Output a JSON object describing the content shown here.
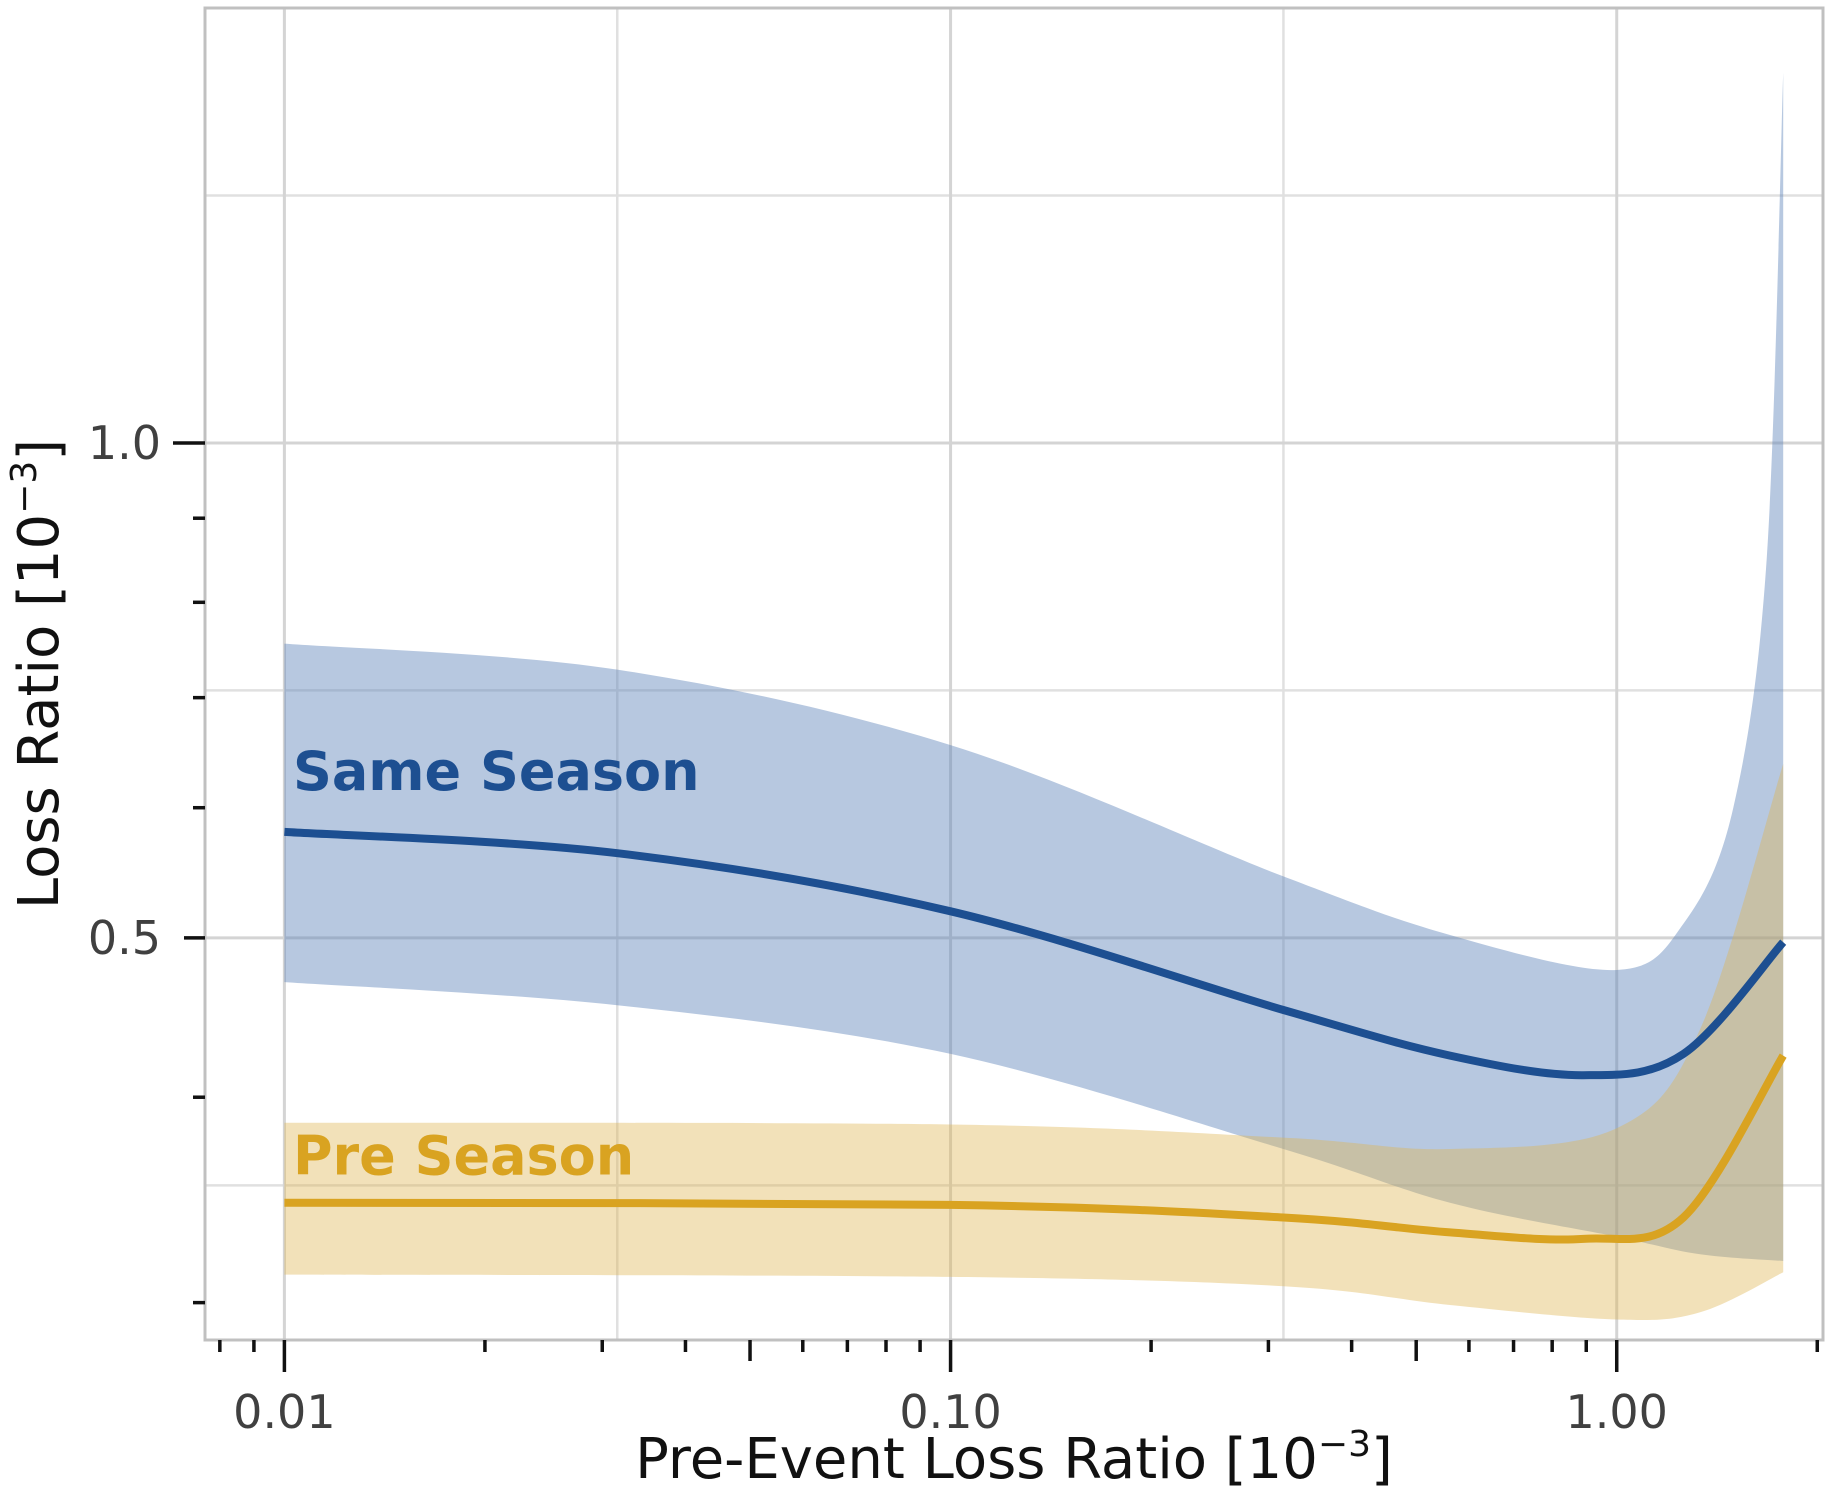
{
  "chart_data": {
    "type": "line",
    "title": "",
    "xlabel": {
      "pre": "Pre-Event Loss Ratio [10",
      "sup": "−3",
      "post": "]"
    },
    "ylabel": {
      "pre": "Loss Ratio [10",
      "sup": "−3",
      "post": "]"
    },
    "x_scale": "log10",
    "y_scale": "log10",
    "xlim": [
      0.0076,
      2.04
    ],
    "ylim": [
      0.2847,
      1.839
    ],
    "grid": true,
    "legend": "inline-labels",
    "x_major_gridlines": [
      0.01,
      0.1,
      1.0
    ],
    "x_minor_gridlines": [
      0.0316,
      0.316
    ],
    "y_major_gridlines": [
      0.5,
      1.0
    ],
    "y_minor_gridlines": [
      0.35355,
      0.70711,
      1.41421
    ],
    "x_ticks": [
      {
        "value": 0.01,
        "label": "0.01"
      },
      {
        "value": 0.1,
        "label": "0.10"
      },
      {
        "value": 1.0,
        "label": "1.00"
      }
    ],
    "y_ticks": [
      {
        "value": 0.5,
        "label": "0.5"
      },
      {
        "value": 1.0,
        "label": "1.0"
      }
    ],
    "log_tick_marks": {
      "sides": "bottom-left"
    },
    "series": [
      {
        "name": "Same Season",
        "line_color": "#1d4f91",
        "ribbon_color": "rgba(96,133,187,0.45)",
        "label": {
          "text": "Same Season",
          "x": 0.0103,
          "y": 0.615,
          "color": "#1d4f91"
        },
        "points": [
          [
            0.01,
            0.58
          ],
          [
            0.0316,
            0.563
          ],
          [
            0.1,
            0.519
          ],
          [
            0.316,
            0.452
          ],
          [
            0.562,
            0.424
          ],
          [
            0.891,
            0.4125
          ],
          [
            1.259,
            0.425
          ],
          [
            1.778,
            0.497
          ]
        ],
        "ribbon_upper": [
          [
            0.01,
            0.755
          ],
          [
            0.0316,
            0.728
          ],
          [
            0.1,
            0.655
          ],
          [
            0.316,
            0.545
          ],
          [
            0.562,
            0.502
          ],
          [
            1.0,
            0.478
          ],
          [
            1.259,
            0.51
          ],
          [
            1.496,
            0.6
          ],
          [
            1.679,
            0.85
          ],
          [
            1.778,
            1.68
          ]
        ],
        "ribbon_lower": [
          [
            0.01,
            0.47
          ],
          [
            0.0316,
            0.455
          ],
          [
            0.1,
            0.425
          ],
          [
            0.316,
            0.372
          ],
          [
            0.562,
            0.345
          ],
          [
            1.0,
            0.329
          ],
          [
            1.334,
            0.321
          ],
          [
            1.778,
            0.318
          ]
        ]
      },
      {
        "name": "Pre Season",
        "line_color": "#d9a321",
        "ribbon_color": "rgba(222,181,79,0.40)",
        "label": {
          "text": "Pre Season",
          "x": 0.0103,
          "y": 0.359,
          "color": "#d9a321"
        },
        "points": [
          [
            0.01,
            0.345
          ],
          [
            0.1,
            0.344
          ],
          [
            0.316,
            0.338
          ],
          [
            0.562,
            0.331
          ],
          [
            0.891,
            0.328
          ],
          [
            1.259,
            0.338
          ],
          [
            1.778,
            0.424
          ]
        ],
        "ribbon_upper": [
          [
            0.01,
            0.386
          ],
          [
            0.1,
            0.385
          ],
          [
            0.316,
            0.378
          ],
          [
            0.562,
            0.372
          ],
          [
            1.0,
            0.383
          ],
          [
            1.334,
            0.44
          ],
          [
            1.778,
            0.638
          ]
        ],
        "ribbon_lower": [
          [
            0.01,
            0.312
          ],
          [
            0.1,
            0.311
          ],
          [
            0.316,
            0.307
          ],
          [
            0.562,
            0.299
          ],
          [
            1.0,
            0.293
          ],
          [
            1.334,
            0.296
          ],
          [
            1.778,
            0.313
          ]
        ]
      }
    ],
    "colors": {
      "background": "#ffffff",
      "grid_major": "#d4d4d4",
      "grid_minor": "#e0e0e0",
      "panel_border": "#c0c0c0",
      "tick": "#111111",
      "tick_label": "#404040",
      "axis_title": "#111111"
    }
  }
}
